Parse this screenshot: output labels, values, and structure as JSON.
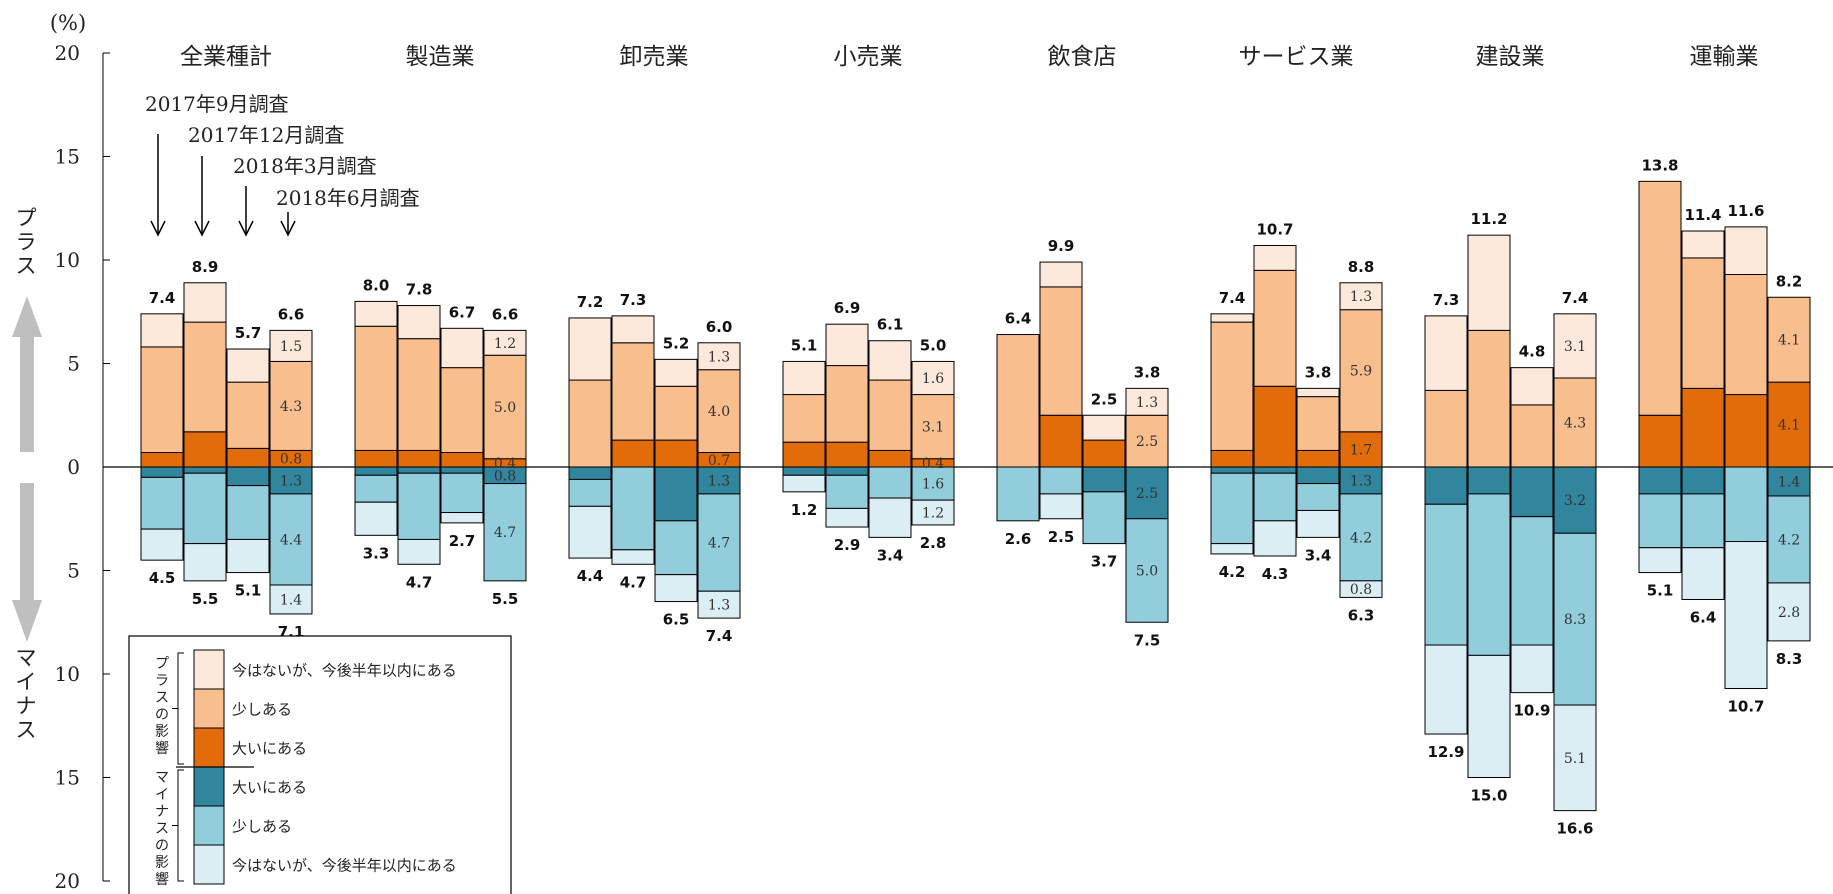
{
  "chart_data": {
    "type": "bar",
    "stacked": true,
    "unit_label": "(%)",
    "y_ticks": [
      "20",
      "15",
      "10",
      "5",
      "0",
      "5",
      "10",
      "15",
      "20"
    ],
    "ylim": [
      -20,
      20
    ],
    "plus_side_label": "プラス",
    "minus_side_label": "マイナス",
    "survey_annotations": [
      "2017年9月調査",
      "2017年12月調査",
      "2018年3月調査",
      "2018年6月調査"
    ],
    "colors": {
      "plus_future": "#FDE9DC",
      "plus_some": "#F8BE8E",
      "plus_large": "#E36C0A",
      "minus_large": "#31859C",
      "minus_some": "#92CDDC",
      "minus_future": "#DAEEF3"
    },
    "legend": {
      "plus_group_label": "プラスの影響",
      "minus_group_label": "マイナスの影響",
      "items": [
        {
          "key": "plus_future",
          "label": "今はないが、今後半年以内にある"
        },
        {
          "key": "plus_some",
          "label": "少しある"
        },
        {
          "key": "plus_large",
          "label": "大いにある"
        },
        {
          "key": "minus_large",
          "label": "大いにある"
        },
        {
          "key": "minus_some",
          "label": "少しある"
        },
        {
          "key": "minus_future",
          "label": "今はないが、今後半年以内にある"
        }
      ]
    },
    "categories": [
      "全業種計",
      "製造業",
      "卸売業",
      "小売業",
      "飲食店",
      "サービス業",
      "建設業",
      "運輸業"
    ],
    "groups": [
      {
        "name": "全業種計",
        "bars": [
          {
            "plus": [
              0.7,
              5.1,
              1.6
            ],
            "minus": [
              0.5,
              2.5,
              1.5
            ],
            "plus_total": "7.4",
            "minus_total": "4.5"
          },
          {
            "plus": [
              1.7,
              5.3,
              1.9
            ],
            "minus": [
              0.3,
              3.4,
              1.8
            ],
            "plus_total": "8.9",
            "minus_total": "5.5"
          },
          {
            "plus": [
              0.9,
              3.2,
              1.6
            ],
            "minus": [
              0.9,
              2.6,
              1.6
            ],
            "plus_total": "5.7",
            "minus_total": "5.1"
          },
          {
            "plus": [
              0.8,
              4.3,
              1.5
            ],
            "minus": [
              1.3,
              4.4,
              1.4
            ],
            "plus_total": "6.6",
            "minus_total": "7.1",
            "plus_labels": [
              "0.8",
              "4.3",
              "1.5"
            ],
            "minus_labels": [
              "1.3",
              "4.4",
              "1.4"
            ]
          }
        ]
      },
      {
        "name": "製造業",
        "bars": [
          {
            "plus": [
              0.8,
              6.0,
              1.2
            ],
            "minus": [
              0.4,
              1.3,
              1.6
            ],
            "plus_total": "8.0",
            "minus_total": "3.3"
          },
          {
            "plus": [
              0.8,
              5.4,
              1.6
            ],
            "minus": [
              0.3,
              3.2,
              1.2
            ],
            "plus_total": "7.8",
            "minus_total": "4.7"
          },
          {
            "plus": [
              0.7,
              4.1,
              1.9
            ],
            "minus": [
              0.3,
              1.9,
              0.5
            ],
            "plus_total": "6.7",
            "minus_total": "2.7"
          },
          {
            "plus": [
              0.4,
              5.0,
              1.2
            ],
            "minus": [
              0.8,
              4.7,
              0.0
            ],
            "plus_total": "6.6",
            "minus_total": "5.5",
            "plus_labels": [
              "0.4",
              "5.0",
              "1.2"
            ],
            "minus_labels": [
              "0.8",
              "4.7",
              ""
            ]
          }
        ]
      },
      {
        "name": "卸売業",
        "bars": [
          {
            "plus": [
              0.0,
              4.2,
              3.0
            ],
            "minus": [
              0.6,
              1.3,
              2.5
            ],
            "plus_total": "7.2",
            "minus_total": "4.4"
          },
          {
            "plus": [
              1.3,
              4.7,
              1.3
            ],
            "minus": [
              0.0,
              4.0,
              0.7
            ],
            "plus_total": "7.3",
            "minus_total": "4.7"
          },
          {
            "plus": [
              1.3,
              2.6,
              1.3
            ],
            "minus": [
              2.6,
              2.6,
              1.3
            ],
            "plus_total": "5.2",
            "minus_total": "6.5"
          },
          {
            "plus": [
              0.7,
              4.0,
              1.3
            ],
            "minus": [
              1.3,
              4.7,
              1.3
            ],
            "plus_total": "6.0",
            "minus_total": "7.4",
            "plus_labels": [
              "0.7",
              "4.0",
              "1.3"
            ],
            "minus_labels": [
              "1.3",
              "4.7",
              "1.3"
            ]
          }
        ]
      },
      {
        "name": "小売業",
        "bars": [
          {
            "plus": [
              1.2,
              2.3,
              1.6
            ],
            "minus": [
              0.4,
              0.0,
              0.8
            ],
            "plus_total": "5.1",
            "minus_total": "1.2"
          },
          {
            "plus": [
              1.2,
              3.7,
              2.0
            ],
            "minus": [
              0.4,
              1.6,
              0.9
            ],
            "plus_total": "6.9",
            "minus_total": "2.9"
          },
          {
            "plus": [
              0.8,
              3.4,
              1.9
            ],
            "minus": [
              0.0,
              1.5,
              1.9
            ],
            "plus_total": "6.1",
            "minus_total": "3.4"
          },
          {
            "plus": [
              0.4,
              3.1,
              1.6
            ],
            "minus": [
              0.0,
              1.6,
              1.2
            ],
            "plus_total": "5.0",
            "minus_total": "2.8",
            "plus_labels": [
              "0.4",
              "3.1",
              "1.6"
            ],
            "minus_labels": [
              "",
              "1.6",
              "1.2"
            ]
          }
        ]
      },
      {
        "name": "飲食店",
        "bars": [
          {
            "plus": [
              0.0,
              6.4,
              0.0
            ],
            "minus": [
              0.0,
              2.6,
              0.0
            ],
            "plus_total": "6.4",
            "minus_total": "2.6"
          },
          {
            "plus": [
              2.5,
              6.2,
              1.2
            ],
            "minus": [
              0.0,
              1.3,
              1.2
            ],
            "plus_total": "9.9",
            "minus_total": "2.5"
          },
          {
            "plus": [
              1.3,
              0.0,
              1.2
            ],
            "minus": [
              1.2,
              2.5,
              0.0
            ],
            "plus_total": "2.5",
            "minus_total": "3.7"
          },
          {
            "plus": [
              0.0,
              2.5,
              1.3
            ],
            "minus": [
              2.5,
              5.0,
              0.0
            ],
            "plus_total": "3.8",
            "minus_total": "7.5",
            "plus_labels": [
              "",
              "2.5",
              "1.3"
            ],
            "minus_labels": [
              "2.5",
              "5.0",
              ""
            ]
          }
        ]
      },
      {
        "name": "サービス業",
        "bars": [
          {
            "plus": [
              0.8,
              6.2,
              0.4
            ],
            "minus": [
              0.3,
              3.4,
              0.5
            ],
            "plus_total": "7.4",
            "minus_total": "4.2"
          },
          {
            "plus": [
              3.9,
              5.6,
              1.2
            ],
            "minus": [
              0.3,
              2.3,
              1.7
            ],
            "plus_total": "10.7",
            "minus_total": "4.3"
          },
          {
            "plus": [
              0.8,
              2.6,
              0.4
            ],
            "minus": [
              0.8,
              1.3,
              1.3
            ],
            "plus_total": "3.8",
            "minus_total": "3.4"
          },
          {
            "plus": [
              1.7,
              5.9,
              1.3
            ],
            "minus": [
              1.3,
              4.2,
              0.8
            ],
            "plus_total": "8.8",
            "minus_total": "6.3",
            "plus_labels": [
              "1.7",
              "5.9",
              "1.3"
            ],
            "minus_labels": [
              "1.3",
              "4.2",
              "0.8"
            ]
          }
        ]
      },
      {
        "name": "建設業",
        "bars": [
          {
            "plus": [
              0.0,
              3.7,
              3.6
            ],
            "minus": [
              1.8,
              6.8,
              4.3
            ],
            "plus_total": "7.3",
            "minus_total": "12.9"
          },
          {
            "plus": [
              0.0,
              6.6,
              4.6
            ],
            "minus": [
              1.3,
              7.8,
              5.9
            ],
            "plus_total": "11.2",
            "minus_total": "15.0"
          },
          {
            "plus": [
              0.0,
              3.0,
              1.8
            ],
            "minus": [
              2.4,
              6.2,
              2.3
            ],
            "plus_total": "4.8",
            "minus_total": "10.9"
          },
          {
            "plus": [
              0.0,
              4.3,
              3.1
            ],
            "minus": [
              3.2,
              8.3,
              5.1
            ],
            "plus_total": "7.4",
            "minus_total": "16.6",
            "plus_labels": [
              "",
              "4.3",
              "3.1"
            ],
            "minus_labels": [
              "3.2",
              "8.3",
              "5.1"
            ]
          }
        ]
      },
      {
        "name": "運輸業",
        "bars": [
          {
            "plus": [
              2.5,
              11.3,
              0.0
            ],
            "minus": [
              1.3,
              2.6,
              1.2
            ],
            "plus_total": "13.8",
            "minus_total": "5.1"
          },
          {
            "plus": [
              3.8,
              6.3,
              1.3
            ],
            "minus": [
              1.3,
              2.6,
              2.5
            ],
            "plus_total": "11.4",
            "minus_total": "6.4"
          },
          {
            "plus": [
              3.5,
              5.8,
              2.3
            ],
            "minus": [
              0.0,
              3.6,
              7.1
            ],
            "plus_total": "11.6",
            "minus_total": "10.7"
          },
          {
            "plus": [
              4.1,
              4.1,
              0.0
            ],
            "minus": [
              1.4,
              4.2,
              2.8
            ],
            "plus_total": "8.2",
            "minus_total": "8.3",
            "plus_labels": [
              "4.1",
              "4.1",
              ""
            ],
            "minus_labels": [
              "1.4",
              "4.2",
              "2.8"
            ]
          }
        ]
      }
    ]
  }
}
